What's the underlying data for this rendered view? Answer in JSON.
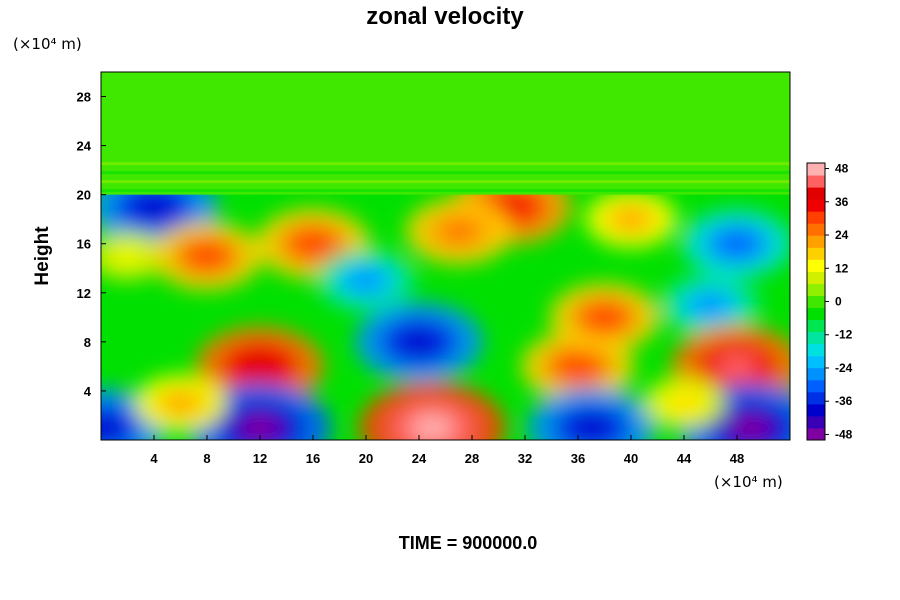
{
  "chart_data": {
    "type": "heatmap",
    "title": "zonal velocity",
    "xlabel": "",
    "ylabel": "Height",
    "x_unit": "(×10⁴ m)",
    "y_unit": "(×10⁴ m)",
    "footer": "TIME = 900000.0",
    "xlim": [
      0,
      52
    ],
    "ylim": [
      0,
      30
    ],
    "x_ticks": [
      "4",
      "8",
      "12",
      "16",
      "20",
      "24",
      "28",
      "32",
      "36",
      "40",
      "44",
      "48"
    ],
    "y_ticks": [
      "4",
      "8",
      "12",
      "16",
      "20",
      "24",
      "28"
    ],
    "colorbar": {
      "min": -50,
      "max": 50,
      "tick_labels": [
        "48",
        "36",
        "24",
        "12",
        "0",
        "-12",
        "-24",
        "-36",
        "-48"
      ],
      "colors": [
        "#7f00a0",
        "#3a00b8",
        "#0000cc",
        "#0030e6",
        "#0060ff",
        "#0090ff",
        "#00bfff",
        "#00e0e0",
        "#00e6a0",
        "#00e650",
        "#00e000",
        "#40e800",
        "#90f000",
        "#d0f000",
        "#ffff00",
        "#ffd000",
        "#ffa000",
        "#ff7000",
        "#ff4000",
        "#f00000",
        "#e00000",
        "#ff6060",
        "#ffb0b0"
      ]
    },
    "features": [
      {
        "x": 4,
        "y": 19,
        "value": -40
      },
      {
        "x": 2,
        "y": 15,
        "value": 12
      },
      {
        "x": 8,
        "y": 15,
        "value": 30
      },
      {
        "x": 12,
        "y": 6,
        "value": 40
      },
      {
        "x": 12,
        "y": 1,
        "value": -48
      },
      {
        "x": 0,
        "y": 1,
        "value": -40
      },
      {
        "x": 16,
        "y": 16,
        "value": 32
      },
      {
        "x": 24,
        "y": 8,
        "value": -40
      },
      {
        "x": 25,
        "y": 1,
        "value": 50
      },
      {
        "x": 31,
        "y": 19,
        "value": 36
      },
      {
        "x": 27,
        "y": 17,
        "value": 28
      },
      {
        "x": 36,
        "y": 6,
        "value": 32
      },
      {
        "x": 37,
        "y": 1,
        "value": -40
      },
      {
        "x": 38,
        "y": 10,
        "value": 30
      },
      {
        "x": 46,
        "y": 11,
        "value": -24
      },
      {
        "x": 48,
        "y": 6,
        "value": 42
      },
      {
        "x": 49,
        "y": 1,
        "value": -48
      },
      {
        "x": 48,
        "y": 16,
        "value": -30
      },
      {
        "x": 20,
        "y": 13,
        "value": -24
      },
      {
        "x": 40,
        "y": 18,
        "value": 20
      },
      {
        "x": 6,
        "y": 3,
        "value": 20
      },
      {
        "x": 44,
        "y": 3,
        "value": 16
      }
    ],
    "upper_layer": {
      "y_from": 20,
      "value": 0
    }
  }
}
